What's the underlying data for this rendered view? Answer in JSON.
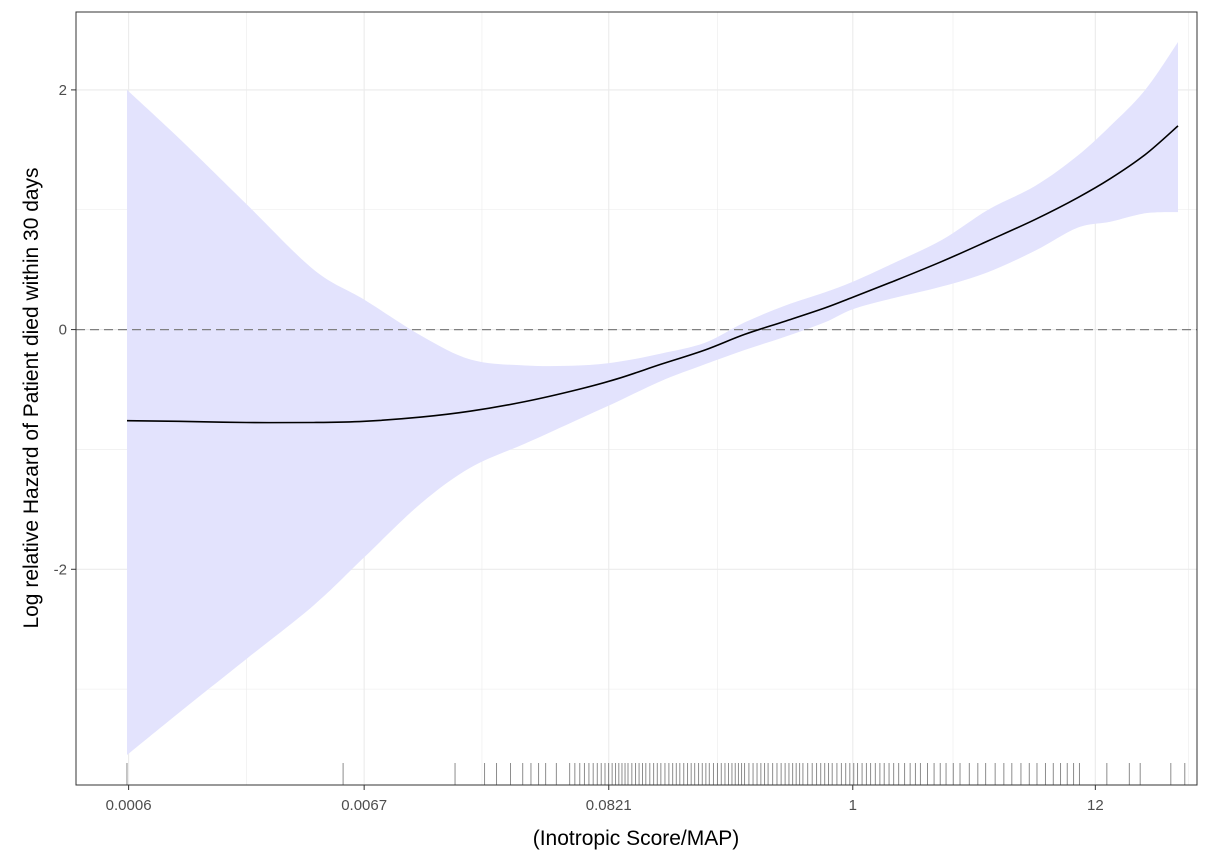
{
  "chart_data": {
    "type": "line",
    "title": "",
    "xlabel": "(Inotropic Score/MAP)",
    "ylabel": "Log relative Hazard of Patient died within 30 days",
    "x_scale": "log",
    "xlim": [
      0.00035,
      34
    ],
    "ylim": [
      -3.8,
      2.65
    ],
    "x_ticks": [
      {
        "value": 0.0006,
        "label": "0.0006"
      },
      {
        "value": 0.0067,
        "label": "0.0067"
      },
      {
        "value": 0.0821,
        "label": "0.0821"
      },
      {
        "value": 1,
        "label": "1"
      },
      {
        "value": 12,
        "label": "12"
      }
    ],
    "y_ticks": [
      {
        "value": -2,
        "label": "-2"
      },
      {
        "value": 0,
        "label": "0"
      },
      {
        "value": 2,
        "label": "2"
      }
    ],
    "grid": true,
    "reference_line": {
      "y": 0,
      "style": "dashed",
      "color": "#808080"
    },
    "colors": {
      "line": "#000000",
      "band": "#e3e3fd",
      "grid": "#ebebeb",
      "rug": "#000000"
    },
    "series": [
      {
        "x": [
          0.00059,
          0.001,
          0.002,
          0.004,
          0.0067,
          0.012,
          0.02,
          0.035,
          0.06,
          0.09,
          0.14,
          0.22,
          0.33,
          0.5,
          0.75,
          1,
          1.5,
          2.5,
          4,
          6.5,
          10,
          14,
          20,
          28
        ],
        "y": [
          -0.76,
          -0.765,
          -0.775,
          -0.775,
          -0.765,
          -0.73,
          -0.68,
          -0.6,
          -0.5,
          -0.41,
          -0.29,
          -0.17,
          -0.04,
          0.07,
          0.18,
          0.27,
          0.4,
          0.57,
          0.74,
          0.92,
          1.1,
          1.26,
          1.46,
          1.7
        ],
        "lower": [
          -3.55,
          -3.2,
          -2.75,
          -2.3,
          -1.9,
          -1.45,
          -1.15,
          -0.95,
          -0.75,
          -0.6,
          -0.43,
          -0.29,
          -0.17,
          -0.06,
          0.06,
          0.17,
          0.26,
          0.36,
          0.48,
          0.66,
          0.85,
          0.9,
          0.97,
          0.98
        ],
        "upper": [
          2.0,
          1.6,
          1.05,
          0.5,
          0.25,
          -0.05,
          -0.25,
          -0.3,
          -0.3,
          -0.27,
          -0.2,
          -0.11,
          0.06,
          0.2,
          0.31,
          0.4,
          0.55,
          0.75,
          1.0,
          1.2,
          1.45,
          1.7,
          2.0,
          2.4
        ]
      }
    ],
    "rug": [
      0.00059,
      0.0054,
      0.017,
      0.023,
      0.026,
      0.03,
      0.034,
      0.037,
      0.04,
      0.043,
      0.048,
      0.055,
      0.058,
      0.061,
      0.064,
      0.067,
      0.07,
      0.073,
      0.076,
      0.079,
      0.082,
      0.085,
      0.088,
      0.091,
      0.094,
      0.097,
      0.1,
      0.104,
      0.108,
      0.112,
      0.116,
      0.12,
      0.125,
      0.13,
      0.135,
      0.14,
      0.146,
      0.152,
      0.158,
      0.164,
      0.17,
      0.177,
      0.184,
      0.191,
      0.198,
      0.206,
      0.214,
      0.222,
      0.23,
      0.24,
      0.25,
      0.26,
      0.27,
      0.28,
      0.29,
      0.3,
      0.31,
      0.32,
      0.33,
      0.345,
      0.36,
      0.375,
      0.39,
      0.405,
      0.42,
      0.44,
      0.46,
      0.48,
      0.5,
      0.52,
      0.54,
      0.56,
      0.58,
      0.6,
      0.63,
      0.66,
      0.69,
      0.72,
      0.75,
      0.78,
      0.81,
      0.85,
      0.89,
      0.93,
      0.97,
      1.01,
      1.05,
      1.1,
      1.15,
      1.2,
      1.26,
      1.32,
      1.38,
      1.45,
      1.52,
      1.6,
      1.7,
      1.8,
      1.9,
      2.0,
      2.15,
      2.3,
      2.45,
      2.6,
      2.8,
      3.0,
      3.3,
      3.6,
      3.9,
      4.3,
      4.7,
      5.1,
      5.6,
      6.1,
      6.6,
      7.2,
      7.8,
      8.4,
      9.0,
      9.6,
      10.2,
      13.5,
      17,
      19,
      26,
      30
    ]
  }
}
